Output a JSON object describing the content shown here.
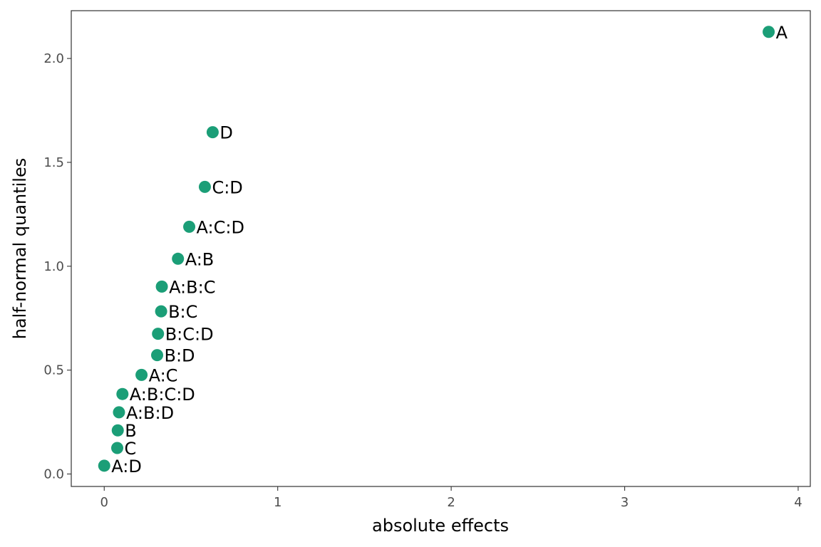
{
  "chart_data": {
    "type": "scatter",
    "title": "",
    "xlabel": "absolute effects",
    "ylabel": "half-normal quantiles",
    "xlim": [
      -0.19,
      4.07
    ],
    "ylim": [
      -0.06,
      2.23
    ],
    "x_ticks": [
      0,
      1,
      2,
      3,
      4
    ],
    "y_ticks": [
      0.0,
      0.5,
      1.0,
      1.5,
      2.0
    ],
    "x_tick_labels": [
      "0",
      "1",
      "2",
      "3",
      "4"
    ],
    "y_tick_labels": [
      "0.0",
      "0.5",
      "1.0",
      "1.5",
      "2.0"
    ],
    "grid": false,
    "point_color": "#1b9e77",
    "points": [
      {
        "label": "A:D",
        "x": 0.0,
        "y": 0.04
      },
      {
        "label": "C",
        "x": 0.075,
        "y": 0.125
      },
      {
        "label": "B",
        "x": 0.078,
        "y": 0.21
      },
      {
        "label": "A:B:D",
        "x": 0.085,
        "y": 0.297
      },
      {
        "label": "A:B:C:D",
        "x": 0.105,
        "y": 0.385
      },
      {
        "label": "A:C",
        "x": 0.215,
        "y": 0.477
      },
      {
        "label": "B:D",
        "x": 0.305,
        "y": 0.572
      },
      {
        "label": "B:C:D",
        "x": 0.31,
        "y": 0.675
      },
      {
        "label": "B:C",
        "x": 0.328,
        "y": 0.783
      },
      {
        "label": "A:B:C",
        "x": 0.332,
        "y": 0.902
      },
      {
        "label": "A:B",
        "x": 0.425,
        "y": 1.036
      },
      {
        "label": "A:C:D",
        "x": 0.49,
        "y": 1.19
      },
      {
        "label": "C:D",
        "x": 0.58,
        "y": 1.382
      },
      {
        "label": "D",
        "x": 0.625,
        "y": 1.645
      },
      {
        "label": "A",
        "x": 3.83,
        "y": 2.128
      }
    ]
  }
}
